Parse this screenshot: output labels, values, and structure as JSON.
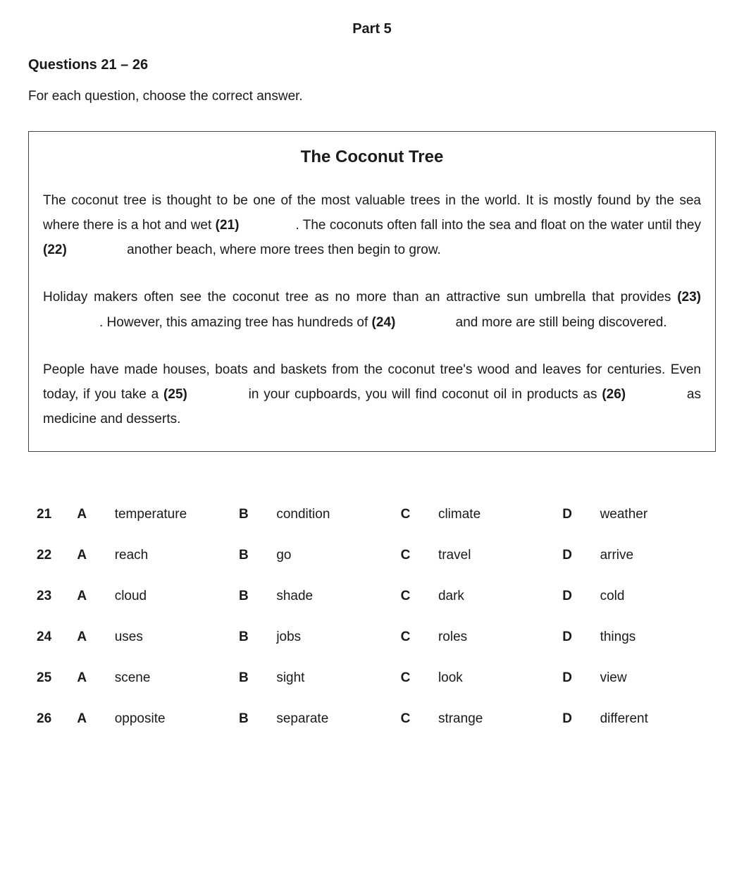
{
  "header": {
    "part": "Part 5",
    "range": "Questions 21 – 26",
    "instruction": "For each question, choose the correct answer."
  },
  "passage": {
    "title": "The Coconut Tree",
    "p1": {
      "s1": "The coconut tree is thought to be one of the most valuable trees in the world. It is mostly found by the sea where there is a hot and wet ",
      "b1": "(21)",
      "s2": ".  The coconuts often fall into the sea and float on the water until they ",
      "b2": "(22)",
      "s3": " another beach, where more trees then begin to grow."
    },
    "p2": {
      "s1": "Holiday makers often see the coconut tree as no more than an attractive sun umbrella that provides ",
      "b1": "(23)",
      "s2": ".  However, this amazing tree has hundreds of ",
      "b2": "(24)",
      "s3": " and more are still being discovered."
    },
    "p3": {
      "s1": "People have made houses, boats and baskets from the coconut tree's wood and leaves for centuries. Even today, if you take a ",
      "b1": "(25)",
      "s2": " in your cupboards, you will find coconut oil in products as ",
      "b2": "(26)",
      "s3": " as medicine and desserts."
    }
  },
  "options": {
    "letters": [
      "A",
      "B",
      "C",
      "D"
    ],
    "rows": [
      {
        "num": "21",
        "words": [
          "temperature",
          "condition",
          "climate",
          "weather"
        ]
      },
      {
        "num": "22",
        "words": [
          "reach",
          "go",
          "travel",
          "arrive"
        ]
      },
      {
        "num": "23",
        "words": [
          "cloud",
          "shade",
          "dark",
          "cold"
        ]
      },
      {
        "num": "24",
        "words": [
          "uses",
          "jobs",
          "roles",
          "things"
        ]
      },
      {
        "num": "25",
        "words": [
          "scene",
          "sight",
          "look",
          "view"
        ]
      },
      {
        "num": "26",
        "words": [
          "opposite",
          "separate",
          "strange",
          "different"
        ]
      }
    ]
  }
}
